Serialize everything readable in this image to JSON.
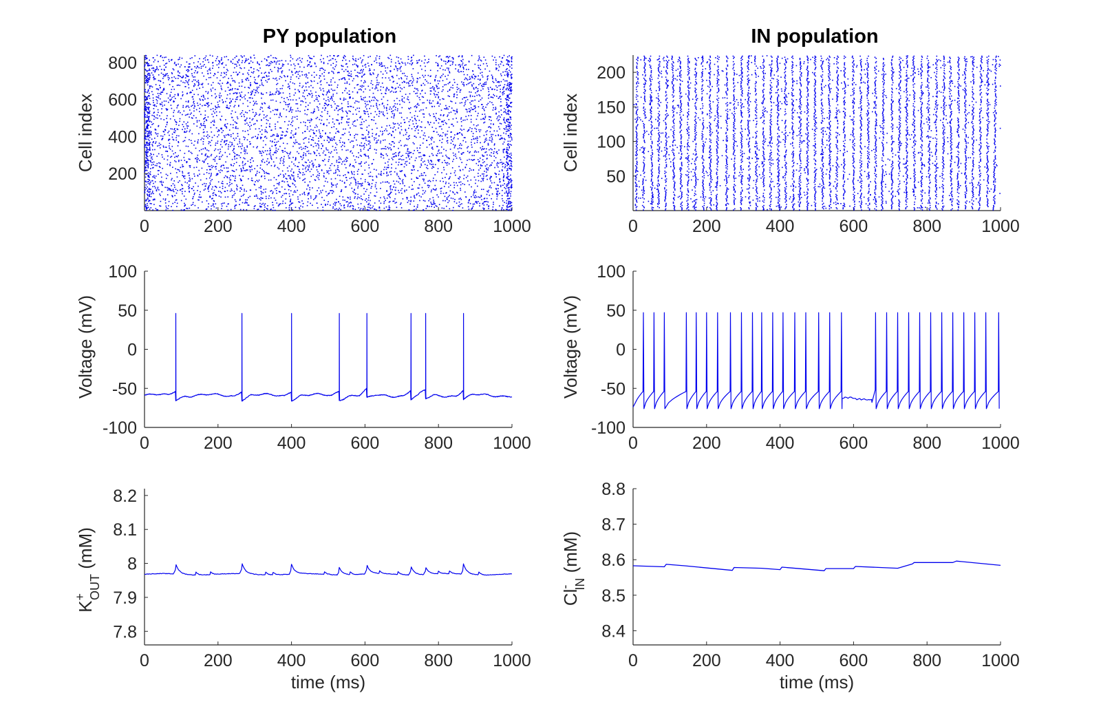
{
  "colors": {
    "series": "#0000ee",
    "axis": "#262626",
    "background": "#ffffff"
  },
  "titles": {
    "left": "PY population",
    "right": "IN population"
  },
  "chart_data": [
    {
      "id": "py-raster",
      "type": "scatter",
      "title": "PY population",
      "xlabel": "",
      "ylabel": "Cell index",
      "xlim": [
        0,
        1000
      ],
      "ylim": [
        0,
        840
      ],
      "xticks": [
        0,
        200,
        400,
        600,
        800,
        1000
      ],
      "xtick_labels": [
        "0",
        "200",
        "400",
        "600",
        "800",
        "1000"
      ],
      "yticks": [
        200,
        400,
        600,
        800
      ],
      "ytick_labels": [
        "200",
        "400",
        "600",
        "800"
      ],
      "grid": false,
      "description_of_points": "spike raster: dense uniform dots for cells 1-840 over 0-1000 ms"
    },
    {
      "id": "in-raster",
      "type": "scatter",
      "title": "IN population",
      "xlabel": "",
      "ylabel": "Cell index",
      "xlim": [
        0,
        1000
      ],
      "ylim": [
        0,
        225
      ],
      "xticks": [
        0,
        200,
        400,
        600,
        800,
        1000
      ],
      "xtick_labels": [
        "0",
        "200",
        "400",
        "600",
        "800",
        "1000"
      ],
      "yticks": [
        50,
        100,
        150,
        200
      ],
      "ytick_labels": [
        "50",
        "100",
        "150",
        "200"
      ],
      "grid": false,
      "burst_times": [
        10,
        30,
        50,
        70,
        90,
        110,
        130,
        150,
        170,
        190,
        210,
        230,
        255,
        275,
        295,
        315,
        335,
        355,
        375,
        395,
        415,
        435,
        455,
        475,
        495,
        515,
        535,
        555,
        575,
        600,
        620,
        640,
        660,
        680,
        705,
        725,
        745,
        765,
        785,
        805,
        825,
        845,
        865,
        885,
        905,
        925,
        945,
        965,
        985
      ]
    },
    {
      "id": "py-voltage",
      "type": "line",
      "xlabel": "",
      "ylabel": "Voltage (mV)",
      "xlim": [
        0,
        1000
      ],
      "ylim": [
        -100,
        100
      ],
      "xticks": [
        0,
        200,
        400,
        600,
        800,
        1000
      ],
      "xtick_labels": [
        "0",
        "200",
        "400",
        "600",
        "800",
        "1000"
      ],
      "yticks": [
        -100,
        -50,
        0,
        50,
        100
      ],
      "ytick_labels": [
        "-100",
        "-50",
        "0",
        "50",
        "100"
      ],
      "grid": false,
      "baseline": -59,
      "spike_peak": 46,
      "spike_times": [
        85,
        265,
        400,
        530,
        605,
        725,
        765,
        868
      ]
    },
    {
      "id": "in-voltage",
      "type": "line",
      "xlabel": "",
      "ylabel": "Voltage (mV)",
      "xlim": [
        0,
        1000
      ],
      "ylim": [
        -100,
        100
      ],
      "xticks": [
        0,
        200,
        400,
        600,
        800,
        1000
      ],
      "xtick_labels": [
        "0",
        "200",
        "400",
        "600",
        "800",
        "1000"
      ],
      "yticks": [
        -100,
        -50,
        0,
        50,
        100
      ],
      "ytick_labels": [
        "-100",
        "-50",
        "0",
        "50",
        "100"
      ],
      "grid": false,
      "spike_peak": 47,
      "reset": -76,
      "spike_times": [
        28,
        57,
        85,
        145,
        172,
        200,
        230,
        265,
        295,
        325,
        350,
        380,
        408,
        440,
        470,
        505,
        535,
        567,
        660,
        690,
        720,
        750,
        780,
        810,
        840,
        870,
        900,
        930,
        960,
        995
      ]
    },
    {
      "id": "py-kout",
      "type": "line",
      "xlabel": "time (ms)",
      "ylabel": "K+OUT (mM)",
      "xlim": [
        0,
        1000
      ],
      "ylim": [
        7.76,
        8.22
      ],
      "xticks": [
        0,
        200,
        400,
        600,
        800,
        1000
      ],
      "xtick_labels": [
        "0",
        "200",
        "400",
        "600",
        "800",
        "1000"
      ],
      "yticks": [
        7.8,
        7.9,
        8.0,
        8.1,
        8.2
      ],
      "ytick_labels": [
        "7.8",
        "7.9",
        "8",
        "8.1",
        "8.2"
      ],
      "grid": false,
      "baseline": 7.968,
      "bump_times": [
        85,
        265,
        400,
        530,
        605,
        725,
        765,
        868
      ],
      "bump_peaks": [
        7.999,
        8.0,
        7.997,
        7.99,
        7.995,
        7.994,
        7.99,
        7.998
      ]
    },
    {
      "id": "in-clin",
      "type": "line",
      "xlabel": "time (ms)",
      "ylabel": "Cl-IN (mM)",
      "xlim": [
        0,
        1000
      ],
      "ylim": [
        8.36,
        8.8
      ],
      "xticks": [
        0,
        200,
        400,
        600,
        800,
        1000
      ],
      "xtick_labels": [
        "0",
        "200",
        "400",
        "600",
        "800",
        "1000"
      ],
      "yticks": [
        8.4,
        8.5,
        8.6,
        8.7,
        8.8
      ],
      "ytick_labels": [
        "8.4",
        "8.5",
        "8.6",
        "8.7",
        "8.8"
      ],
      "grid": false,
      "x": [
        0,
        85,
        90,
        140,
        270,
        275,
        350,
        400,
        405,
        520,
        525,
        600,
        605,
        720,
        760,
        765,
        870,
        880,
        1000
      ],
      "y": [
        8.583,
        8.58,
        8.587,
        8.583,
        8.57,
        8.578,
        8.576,
        8.572,
        8.579,
        8.569,
        8.575,
        8.575,
        8.581,
        8.576,
        8.588,
        8.592,
        8.592,
        8.596,
        8.584
      ]
    }
  ],
  "ylabels": {
    "cell_index": "Cell index",
    "voltage": "Voltage (mV)",
    "kout_main": "K",
    "kout_sup": "+",
    "kout_sub": "OUT",
    "kout_unit": " (mM)",
    "clin_main": "Cl",
    "clin_sup": "-",
    "clin_sub": "IN",
    "clin_unit": " (mM)"
  },
  "xlabels": {
    "time": "time (ms)"
  }
}
